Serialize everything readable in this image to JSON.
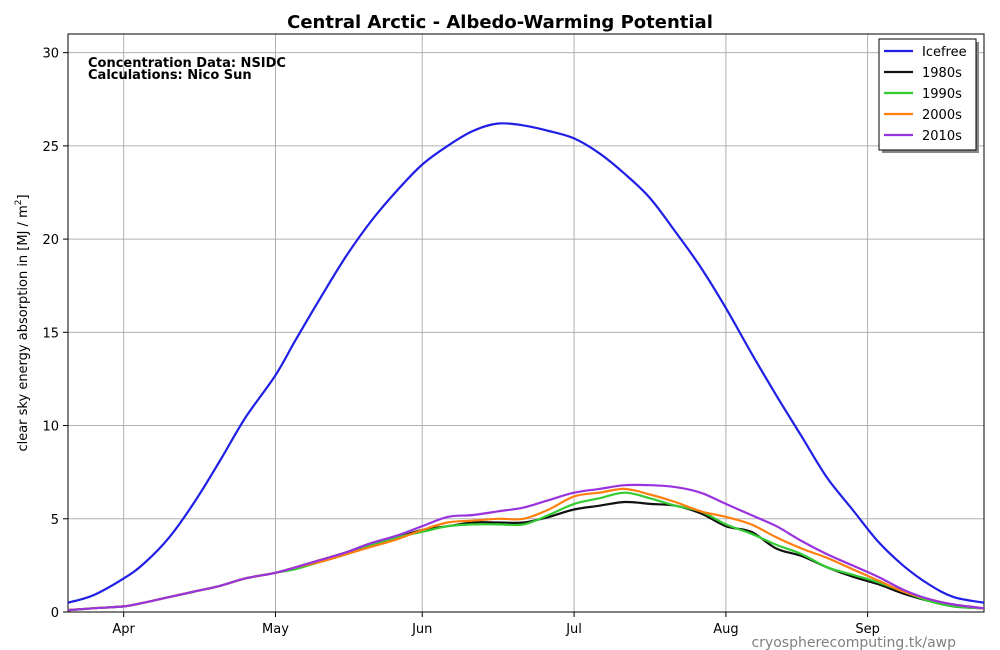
{
  "chart_data": {
    "type": "line",
    "title": "Central Arctic - Albedo-Warming Potential",
    "ylabel": "clear sky energy absorption in  [MJ / m",
    "ylabel_sup": "2",
    "ylabel_end": "]",
    "xlabel": "",
    "xlim_day_of_year": [
      75,
      256
    ],
    "ylim": [
      0,
      31
    ],
    "grid": true,
    "legend_position": "top-right",
    "x_ticks": [
      {
        "label": "Apr",
        "day": 86
      },
      {
        "label": "May",
        "day": 116
      },
      {
        "label": "Jun",
        "day": 145
      },
      {
        "label": "Jul",
        "day": 175
      },
      {
        "label": "Aug",
        "day": 205
      },
      {
        "label": "Sep",
        "day": 233
      }
    ],
    "y_ticks": [
      0,
      5,
      10,
      15,
      20,
      25,
      30
    ],
    "annotations": [
      "Concentration Data: NSIDC",
      "Calculations: Nico Sun"
    ],
    "watermark": "cryospherecomputing.tk/awp",
    "x_day_of_year": [
      75,
      80,
      86,
      90,
      95,
      100,
      105,
      110,
      116,
      120,
      125,
      130,
      135,
      140,
      145,
      150,
      155,
      160,
      165,
      170,
      175,
      180,
      185,
      190,
      195,
      200,
      205,
      210,
      215,
      220,
      225,
      230,
      235,
      240,
      245,
      250,
      256
    ],
    "series": [
      {
        "name": "Icefree",
        "color": "#1f1fe6",
        "values": [
          0.5,
          0.9,
          1.8,
          2.6,
          4.0,
          5.9,
          8.1,
          10.4,
          12.7,
          14.6,
          16.9,
          19.1,
          21.0,
          22.6,
          24.0,
          25.0,
          25.8,
          26.2,
          26.1,
          25.8,
          25.4,
          24.6,
          23.5,
          22.2,
          20.4,
          18.5,
          16.3,
          13.9,
          11.6,
          9.4,
          7.2,
          5.5,
          3.8,
          2.5,
          1.5,
          0.8,
          0.5
        ]
      },
      {
        "name": "1980s",
        "color": "#111111",
        "values": [
          0.1,
          0.2,
          0.3,
          0.5,
          0.8,
          1.1,
          1.4,
          1.8,
          2.1,
          2.4,
          2.8,
          3.2,
          3.7,
          4.0,
          4.4,
          4.6,
          4.8,
          4.8,
          4.8,
          5.1,
          5.5,
          5.7,
          5.9,
          5.8,
          5.7,
          5.3,
          4.6,
          4.3,
          3.4,
          3.0,
          2.4,
          1.9,
          1.5,
          1.0,
          0.6,
          0.3,
          0.2
        ]
      },
      {
        "name": "1990s",
        "color": "#33cc33",
        "values": [
          0.1,
          0.2,
          0.3,
          0.5,
          0.8,
          1.1,
          1.4,
          1.8,
          2.1,
          2.3,
          2.7,
          3.1,
          3.6,
          4.0,
          4.3,
          4.6,
          4.7,
          4.7,
          4.7,
          5.2,
          5.8,
          6.1,
          6.4,
          6.1,
          5.7,
          5.4,
          4.7,
          4.2,
          3.6,
          3.1,
          2.4,
          2.0,
          1.6,
          1.1,
          0.6,
          0.3,
          0.2
        ]
      },
      {
        "name": "2000s",
        "color": "#ff7f0e",
        "values": [
          0.1,
          0.2,
          0.3,
          0.5,
          0.8,
          1.1,
          1.4,
          1.8,
          2.1,
          2.4,
          2.7,
          3.1,
          3.5,
          3.9,
          4.4,
          4.8,
          4.9,
          5.0,
          5.0,
          5.5,
          6.2,
          6.4,
          6.6,
          6.3,
          5.9,
          5.4,
          5.1,
          4.7,
          4.0,
          3.4,
          2.9,
          2.3,
          1.7,
          1.1,
          0.7,
          0.4,
          0.2
        ]
      },
      {
        "name": "2010s",
        "color": "#9933dd",
        "values": [
          0.1,
          0.2,
          0.3,
          0.5,
          0.8,
          1.1,
          1.4,
          1.8,
          2.1,
          2.4,
          2.8,
          3.2,
          3.7,
          4.1,
          4.6,
          5.1,
          5.2,
          5.4,
          5.6,
          6.0,
          6.4,
          6.6,
          6.8,
          6.8,
          6.7,
          6.4,
          5.8,
          5.2,
          4.6,
          3.8,
          3.1,
          2.5,
          1.9,
          1.2,
          0.7,
          0.4,
          0.2
        ]
      }
    ]
  }
}
